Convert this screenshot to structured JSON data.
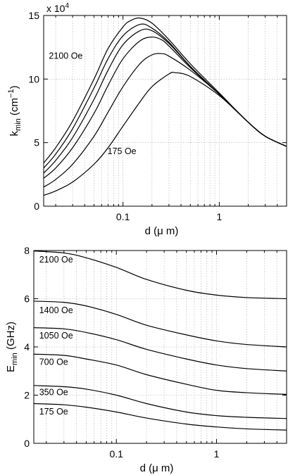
{
  "chart_data": [
    {
      "type": "line",
      "xscale": "log",
      "xlim": [
        0.015,
        5
      ],
      "ylim": [
        0,
        15
      ],
      "grid": true,
      "x_ticks": [
        0.1,
        1
      ],
      "x_tick_labels": [
        "0.1",
        "1"
      ],
      "y_ticks": [
        0,
        5,
        10,
        15
      ],
      "y_tick_labels": [
        "0",
        "5",
        "10",
        "15"
      ],
      "exponent_label": "x 10",
      "exponent_power": "4",
      "xlabel": "d (μ m)",
      "ylabel_main": "k",
      "ylabel_sub": "min",
      "ylabel_unit": "(cm",
      "ylabel_unit_sup": "−1",
      "ylabel_close": ")",
      "annotations": [
        {
          "text": "2100 Oe",
          "x": 0.017,
          "y": 11.6
        },
        {
          "text": "175 Oe",
          "x": 0.069,
          "y": 4.1
        }
      ],
      "series": [
        {
          "x": [
            0.015,
            0.02,
            0.03,
            0.05,
            0.07,
            0.1,
            0.12,
            0.15,
            0.2,
            0.3,
            0.5,
            1,
            2,
            3,
            5
          ],
          "values": [
            3.4,
            4.6,
            6.7,
            10.0,
            12.4,
            14.1,
            14.6,
            14.8,
            14.4,
            13.1,
            11.2,
            8.9,
            6.6,
            5.5,
            4.7
          ]
        },
        {
          "x": [
            0.015,
            0.02,
            0.03,
            0.05,
            0.07,
            0.1,
            0.15,
            0.2,
            0.3,
            0.5,
            1,
            2,
            3,
            5
          ],
          "values": [
            3.0,
            4.1,
            6.1,
            9.3,
            11.6,
            13.4,
            14.3,
            14.0,
            12.9,
            11.0,
            8.8,
            6.6,
            5.5,
            4.7
          ]
        },
        {
          "x": [
            0.015,
            0.02,
            0.03,
            0.05,
            0.07,
            0.1,
            0.15,
            0.2,
            0.3,
            0.5,
            1,
            2,
            3,
            5
          ],
          "values": [
            2.6,
            3.6,
            5.4,
            8.4,
            10.7,
            12.7,
            13.8,
            13.8,
            12.8,
            11.0,
            8.8,
            6.6,
            5.5,
            4.7
          ]
        },
        {
          "x": [
            0.015,
            0.02,
            0.03,
            0.05,
            0.07,
            0.1,
            0.15,
            0.2,
            0.25,
            0.3,
            0.5,
            1,
            2,
            3,
            5
          ],
          "values": [
            2.2,
            3.0,
            4.6,
            7.3,
            9.5,
            11.6,
            13.0,
            13.3,
            13.1,
            12.6,
            10.9,
            8.8,
            6.6,
            5.5,
            4.7
          ]
        },
        {
          "x": [
            0.015,
            0.02,
            0.03,
            0.05,
            0.07,
            0.1,
            0.15,
            0.2,
            0.25,
            0.3,
            0.5,
            1,
            2,
            3,
            5
          ],
          "values": [
            1.5,
            2.1,
            3.3,
            5.5,
            7.4,
            9.4,
            11.2,
            11.9,
            12.0,
            11.8,
            10.7,
            8.8,
            6.6,
            5.5,
            4.7
          ]
        },
        {
          "x": [
            0.015,
            0.02,
            0.03,
            0.05,
            0.07,
            0.1,
            0.15,
            0.2,
            0.3,
            0.35,
            0.5,
            1,
            2,
            3,
            5
          ],
          "values": [
            0.85,
            1.2,
            1.9,
            3.3,
            4.6,
            6.3,
            8.2,
            9.4,
            10.4,
            10.5,
            10.2,
            8.7,
            6.6,
            5.5,
            4.7
          ]
        }
      ]
    },
    {
      "type": "line",
      "xscale": "log",
      "xlim": [
        0.015,
        5
      ],
      "ylim": [
        0,
        8
      ],
      "grid": true,
      "x_ticks": [
        0.1,
        1
      ],
      "x_tick_labels": [
        "0.1",
        "1"
      ],
      "y_ticks": [
        0,
        2,
        4,
        6,
        8
      ],
      "y_tick_labels": [
        "0",
        "2",
        "4",
        "6",
        "8"
      ],
      "xlabel": "d (μ m)",
      "ylabel_main": "E",
      "ylabel_sub": "min",
      "ylabel_unit": "(GHz)",
      "annotations": [
        {
          "text": "2100 Oe",
          "x": 0.017,
          "y": 7.5
        },
        {
          "text": "1400 Oe",
          "x": 0.017,
          "y": 5.4
        },
        {
          "text": "1050 Oe",
          "x": 0.017,
          "y": 4.35
        },
        {
          "text": "700 Oe",
          "x": 0.017,
          "y": 3.25
        },
        {
          "text": "350 Oe",
          "x": 0.017,
          "y": 2.0
        },
        {
          "text": "175 Oe",
          "x": 0.017,
          "y": 1.2
        }
      ],
      "series": [
        {
          "x": [
            0.015,
            0.03,
            0.05,
            0.1,
            0.2,
            0.5,
            1,
            2,
            5
          ],
          "values": [
            7.98,
            7.9,
            7.7,
            7.3,
            6.8,
            6.35,
            6.15,
            6.05,
            6.0
          ]
        },
        {
          "x": [
            0.015,
            0.03,
            0.05,
            0.1,
            0.2,
            0.5,
            1,
            2,
            5
          ],
          "values": [
            5.9,
            5.85,
            5.7,
            5.35,
            4.9,
            4.5,
            4.25,
            4.1,
            4.0
          ]
        },
        {
          "x": [
            0.015,
            0.03,
            0.05,
            0.1,
            0.2,
            0.5,
            1,
            2,
            5
          ],
          "values": [
            4.8,
            4.75,
            4.6,
            4.3,
            3.9,
            3.5,
            3.25,
            3.1,
            3.0
          ]
        },
        {
          "x": [
            0.015,
            0.03,
            0.05,
            0.1,
            0.2,
            0.5,
            1,
            2,
            5
          ],
          "values": [
            3.7,
            3.65,
            3.5,
            3.25,
            2.85,
            2.45,
            2.2,
            2.1,
            2.03
          ]
        },
        {
          "x": [
            0.015,
            0.03,
            0.05,
            0.1,
            0.2,
            0.5,
            1,
            2,
            5
          ],
          "values": [
            2.4,
            2.35,
            2.25,
            2.0,
            1.65,
            1.3,
            1.15,
            1.08,
            1.03
          ]
        },
        {
          "x": [
            0.015,
            0.03,
            0.05,
            0.1,
            0.2,
            0.5,
            1,
            2,
            5
          ],
          "values": [
            1.65,
            1.6,
            1.5,
            1.3,
            1.05,
            0.8,
            0.68,
            0.6,
            0.55
          ]
        }
      ]
    }
  ]
}
